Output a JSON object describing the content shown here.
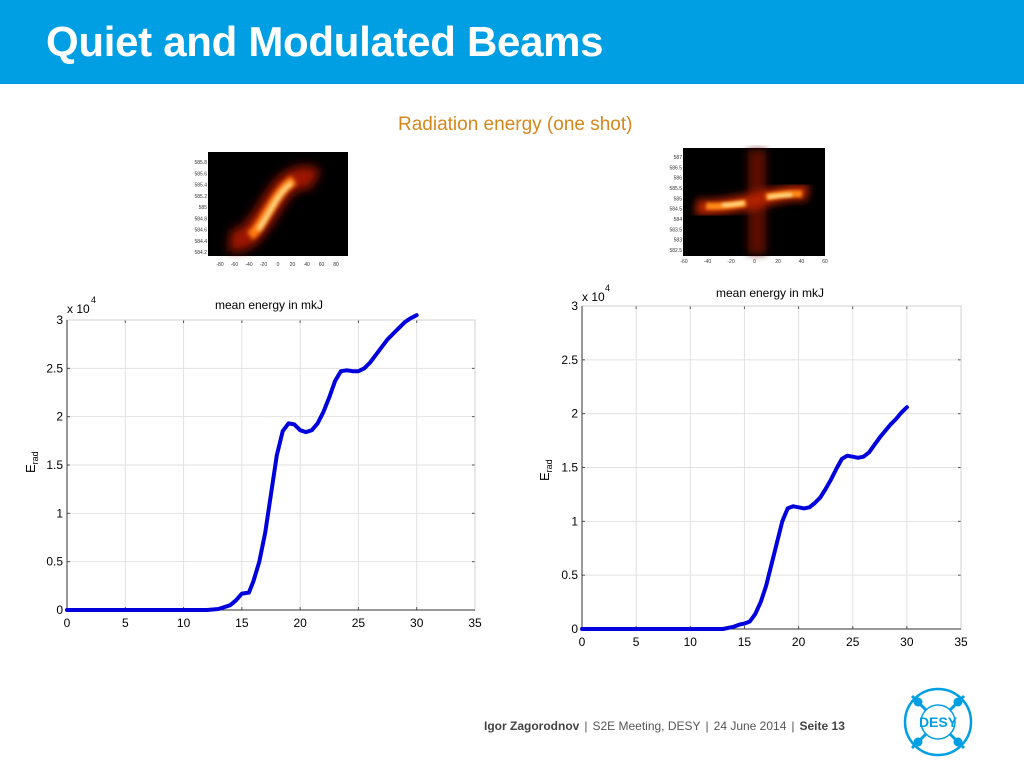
{
  "slide": {
    "title": "Quiet and Modulated Beams",
    "subtitle": "Radiation energy (one shot)"
  },
  "footer": {
    "author": "Igor Zagorodnov",
    "event": "S2E  Meeting, DESY",
    "date": "24 June 2014",
    "page": "Seite 13",
    "separator": "|"
  },
  "logo": {
    "text": "DESY",
    "icon": "desy-logo-icon",
    "color": "#009fe3"
  },
  "heatmaps": [
    {
      "yticks": [
        "585.8",
        "585.6",
        "585.4",
        "585.2",
        "585",
        "584.8",
        "584.6",
        "584.4",
        "584.2"
      ],
      "xticks": [
        "-80",
        "-60",
        "-40",
        "-20",
        "0",
        "20",
        "40",
        "60",
        "80"
      ]
    },
    {
      "yticks": [
        "587",
        "586.5",
        "586",
        "585.5",
        "585",
        "584.5",
        "584",
        "583.5",
        "583",
        "582.5"
      ],
      "xticks": [
        "-60",
        "-40",
        "-20",
        "0",
        "20",
        "40",
        "60"
      ]
    }
  ],
  "chart_data": [
    {
      "type": "line",
      "title": "mean energy in mkJ",
      "ylabel_main": "E",
      "ylabel_sub": "rad",
      "exponent_base": "x 10",
      "exponent_power": "4",
      "xlim": [
        0,
        35
      ],
      "ylim": [
        0,
        3
      ],
      "xticks": [
        0,
        5,
        10,
        15,
        20,
        25,
        30,
        35
      ],
      "yticks": [
        0,
        0.5,
        1,
        1.5,
        2,
        2.5,
        3
      ],
      "grid": true,
      "color": "#0000dd",
      "series": [
        {
          "x": [
            0,
            12,
            13,
            14,
            14.5,
            15,
            15.6,
            16,
            16.5,
            17,
            17.5,
            18,
            18.5,
            19,
            19.5,
            20,
            20.5,
            21,
            21.5,
            22,
            22.5,
            23,
            23.5,
            24,
            24.5,
            25,
            25.5,
            26,
            26.5,
            27,
            27.5,
            28,
            28.5,
            29,
            29.5,
            30
          ],
          "y": [
            0,
            0,
            0.01,
            0.05,
            0.1,
            0.17,
            0.18,
            0.3,
            0.5,
            0.8,
            1.2,
            1.6,
            1.85,
            1.93,
            1.92,
            1.86,
            1.84,
            1.86,
            1.93,
            2.05,
            2.2,
            2.37,
            2.47,
            2.48,
            2.47,
            2.47,
            2.5,
            2.56,
            2.64,
            2.72,
            2.8,
            2.86,
            2.92,
            2.98,
            3.02,
            3.05
          ]
        }
      ]
    },
    {
      "type": "line",
      "title": "mean energy in mkJ",
      "ylabel_main": "E",
      "ylabel_sub": "rad",
      "exponent_base": "x 10",
      "exponent_power": "4",
      "xlim": [
        0,
        35
      ],
      "ylim": [
        0,
        3
      ],
      "xticks": [
        0,
        5,
        10,
        15,
        20,
        25,
        30,
        35
      ],
      "yticks": [
        0,
        0.5,
        1,
        1.5,
        2,
        2.5,
        3
      ],
      "grid": true,
      "color": "#0000dd",
      "series": [
        {
          "x": [
            0,
            13,
            14,
            14.5,
            15,
            15.5,
            16,
            16.5,
            17,
            17.5,
            18,
            18.5,
            19,
            19.5,
            20,
            20.5,
            21,
            21.5,
            22,
            22.5,
            23,
            23.5,
            24,
            24.5,
            25,
            25.5,
            26,
            26.5,
            27,
            27.5,
            28,
            28.5,
            29,
            29.5,
            30
          ],
          "y": [
            0,
            0,
            0.02,
            0.04,
            0.05,
            0.07,
            0.14,
            0.25,
            0.4,
            0.6,
            0.8,
            1.0,
            1.12,
            1.14,
            1.13,
            1.12,
            1.13,
            1.17,
            1.22,
            1.3,
            1.39,
            1.49,
            1.58,
            1.61,
            1.6,
            1.59,
            1.6,
            1.64,
            1.71,
            1.78,
            1.84,
            1.9,
            1.95,
            2.01,
            2.06
          ]
        }
      ]
    }
  ]
}
